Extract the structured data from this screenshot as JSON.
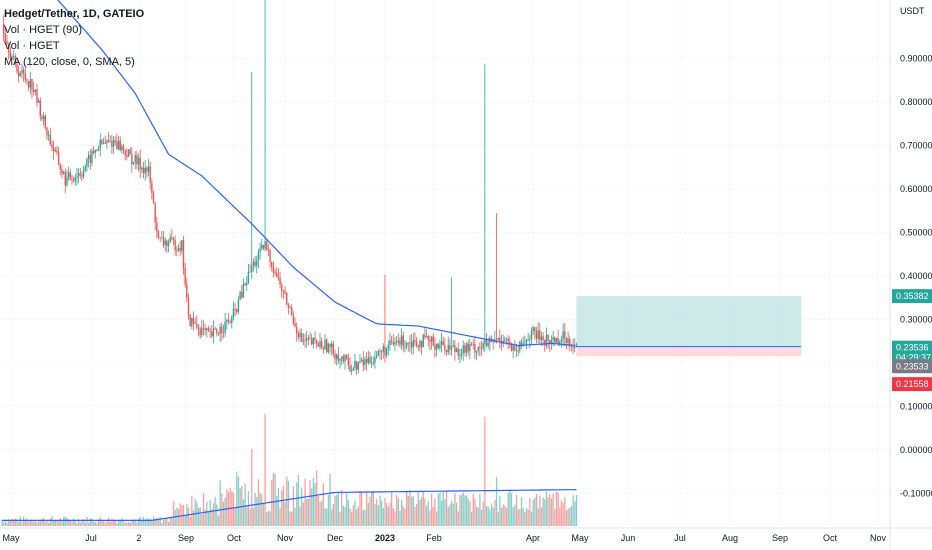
{
  "legend": {
    "symbol": "Hedget/Tether, 1D, GATEIO",
    "vol1": "Vol · HGET (90)",
    "vol2": "Vol · HGET",
    "ma": "MA (120, close, 0, SMA, 5)"
  },
  "chart_data": {
    "type": "candlestick",
    "currency": "USDT",
    "y_ticks": [
      "0.90000",
      "0.80000",
      "0.70000",
      "0.60000",
      "0.50000",
      "0.40000",
      "0.30000",
      "0.20000",
      "0.10000",
      "0.00000",
      "-0.10000"
    ],
    "y_tick_values": [
      0.9,
      0.8,
      0.7,
      0.6,
      0.5,
      0.4,
      0.3,
      0.2,
      0.1,
      0.0,
      -0.1
    ],
    "x_ticks": [
      "May",
      "Jul",
      "2",
      "Sep",
      "Oct",
      "Nov",
      "Dec",
      "2023",
      "Feb",
      "Apr",
      "May",
      "Jun",
      "Jul",
      "Aug",
      "Sep",
      "Oct",
      "Nov"
    ],
    "price_labels": {
      "target": "0.35382",
      "current": "0.23536",
      "countdown": "04:29:37",
      "ma_value": "0.23533",
      "stop": "0.21558"
    },
    "colors": {
      "up": "#26a69a",
      "down": "#ef5350",
      "ma": "#2962ff",
      "target_zone": "#b2dfdb",
      "stop_zone": "#ffcdd2",
      "current_label": "#26a69a",
      "ma_label": "#787b86",
      "stop_label": "#f23645"
    },
    "price_path": [
      [
        0,
        0.98
      ],
      [
        8,
        0.88
      ],
      [
        18,
        0.84
      ],
      [
        28,
        0.72
      ],
      [
        38,
        0.62
      ],
      [
        48,
        0.64
      ],
      [
        58,
        0.7
      ],
      [
        68,
        0.71
      ],
      [
        78,
        0.67
      ],
      [
        88,
        0.64
      ],
      [
        94,
        0.48
      ],
      [
        108,
        0.47
      ],
      [
        112,
        0.3
      ],
      [
        125,
        0.26
      ],
      [
        138,
        0.3
      ],
      [
        150,
        0.42
      ],
      [
        158,
        0.47
      ],
      [
        168,
        0.37
      ],
      [
        180,
        0.25
      ],
      [
        195,
        0.24
      ],
      [
        210,
        0.19
      ],
      [
        222,
        0.21
      ],
      [
        238,
        0.25
      ],
      [
        255,
        0.25
      ],
      [
        275,
        0.23
      ],
      [
        290,
        0.24
      ],
      [
        302,
        0.26
      ],
      [
        308,
        0.22
      ],
      [
        318,
        0.27
      ],
      [
        328,
        0.25
      ],
      [
        338,
        0.26
      ],
      [
        345,
        0.24
      ]
    ],
    "ma_path": [
      [
        0,
        1.15
      ],
      [
        30,
        1.05
      ],
      [
        60,
        0.92
      ],
      [
        80,
        0.82
      ],
      [
        100,
        0.68
      ],
      [
        120,
        0.63
      ],
      [
        150,
        0.52
      ],
      [
        175,
        0.42
      ],
      [
        200,
        0.34
      ],
      [
        225,
        0.29
      ],
      [
        250,
        0.285
      ],
      [
        270,
        0.27
      ],
      [
        290,
        0.255
      ],
      [
        310,
        0.24
      ],
      [
        330,
        0.245
      ],
      [
        345,
        0.24
      ]
    ],
    "volume_spikes": [
      [
        150,
        0.55
      ],
      [
        158,
        0.8
      ],
      [
        230,
        0.2
      ],
      [
        270,
        0.18
      ],
      [
        290,
        0.78
      ],
      [
        297,
        0.35
      ]
    ],
    "position": {
      "entry": 0.2376,
      "target": 0.35382,
      "stop": 0.21558,
      "x_start": 345,
      "x_end": 480
    }
  }
}
